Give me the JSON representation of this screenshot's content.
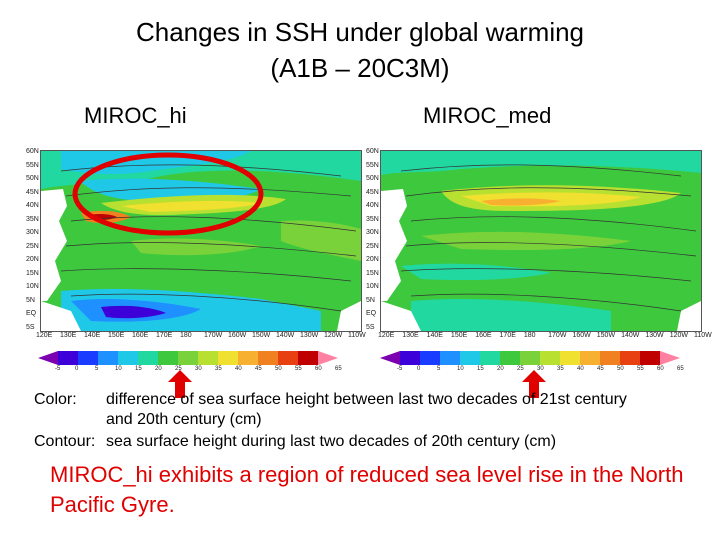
{
  "title": {
    "line1": "Changes in SSH under global warming",
    "line2": "(A1B – 20C3M)"
  },
  "panels": {
    "left": {
      "label": "MIROC_hi"
    },
    "right": {
      "label": "MIROC_med"
    }
  },
  "map_axes": {
    "lat_labels": [
      "60N",
      "55N",
      "50N",
      "45N",
      "40N",
      "35N",
      "30N",
      "25N",
      "20N",
      "15N",
      "10N",
      "5N",
      "EQ",
      "5S"
    ],
    "lon_labels": [
      "120E",
      "130E",
      "140E",
      "150E",
      "160E",
      "170E",
      "180",
      "170W",
      "160W",
      "150W",
      "140W",
      "130W",
      "120W",
      "110W"
    ]
  },
  "colorbar": {
    "ticks": [
      "-5",
      "0",
      "5",
      "10",
      "15",
      "20",
      "25",
      "30",
      "35",
      "40",
      "45",
      "50",
      "55",
      "60",
      "65"
    ],
    "colors": [
      "#7a00b0",
      "#3d00d8",
      "#1a3cff",
      "#1e90ff",
      "#20c8e8",
      "#20d8a0",
      "#3ec83e",
      "#7ad23a",
      "#b8e030",
      "#f0e030",
      "#f8b030",
      "#f08020",
      "#e84010",
      "#c00000",
      "#ff80a0"
    ]
  },
  "legend": {
    "color_key": "Color:",
    "color_desc": "difference of sea surface height between last two decades of 21st century and 20th century (cm)",
    "contour_key": "Contour:",
    "contour_desc": "sea surface height during last two decades of 20th century (cm)"
  },
  "conclusion": "MIROC_hi exhibits a region of reduced sea level rise in the North Pacific Gyre.",
  "colors": {
    "highlight": "#e00000",
    "ocean_green": "#3ec83e"
  }
}
